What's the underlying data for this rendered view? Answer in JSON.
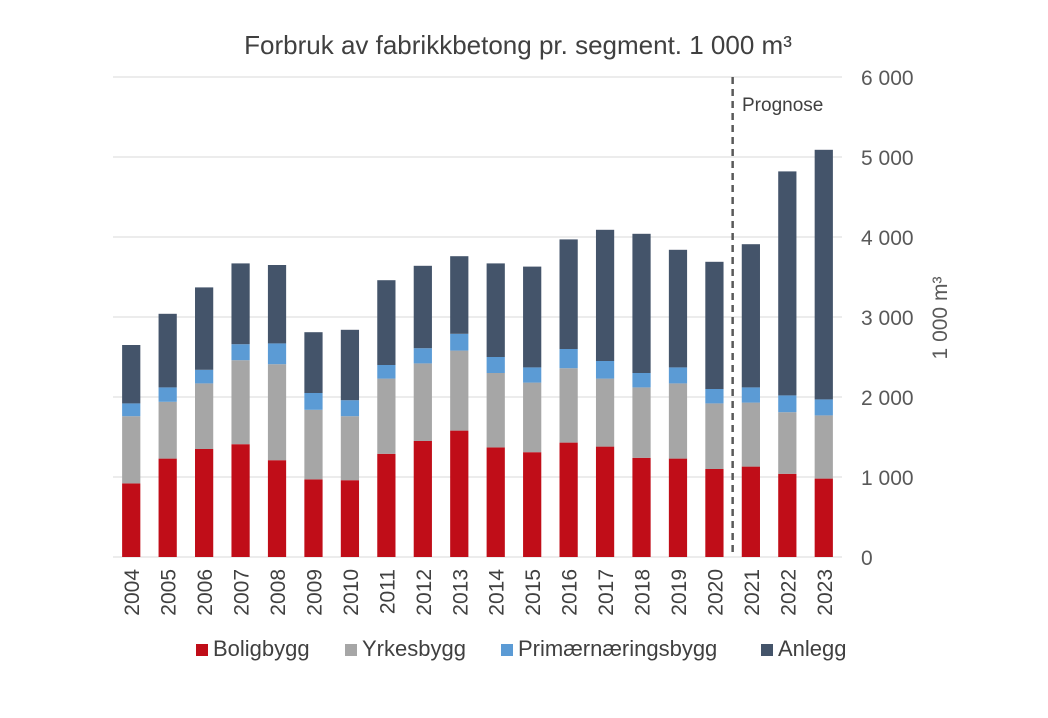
{
  "chart_data": {
    "type": "bar",
    "stacked": true,
    "title": "Forbruk av fabrikkbetong pr. segment. 1 000 m³",
    "xlabel": "",
    "ylabel": "1 000 m³",
    "ylim": [
      0,
      6000
    ],
    "yticks": [
      0,
      1000,
      2000,
      3000,
      4000,
      5000,
      6000
    ],
    "ytick_labels": [
      "0",
      "1 000",
      "2 000",
      "3 000",
      "4 000",
      "5 000",
      "6 000"
    ],
    "yaxis_side": "right",
    "grid": true,
    "categories": [
      "2004",
      "2005",
      "2006",
      "2007",
      "2008",
      "2009",
      "2010",
      "2011",
      "2012",
      "2013",
      "2014",
      "2015",
      "2016",
      "2017",
      "2018",
      "2019",
      "2020",
      "2021",
      "2022",
      "2023"
    ],
    "series": [
      {
        "name": "Boligbygg",
        "color": "#c00d18",
        "values": [
          920,
          1230,
          1350,
          1410,
          1210,
          970,
          960,
          1290,
          1450,
          1580,
          1370,
          1310,
          1430,
          1380,
          1240,
          1230,
          1100,
          1130,
          1040,
          980
        ]
      },
      {
        "name": "Yrkesbygg",
        "color": "#a6a6a6",
        "values": [
          840,
          710,
          820,
          1050,
          1200,
          870,
          800,
          940,
          970,
          1000,
          930,
          870,
          930,
          850,
          880,
          940,
          820,
          800,
          770,
          790
        ]
      },
      {
        "name": "Primærnæringsbygg",
        "color": "#5b9bd5",
        "values": [
          160,
          180,
          170,
          200,
          260,
          210,
          200,
          170,
          190,
          210,
          200,
          190,
          240,
          220,
          180,
          200,
          180,
          190,
          210,
          200
        ]
      },
      {
        "name": "Anlegg",
        "color": "#44546a",
        "values": [
          730,
          920,
          1030,
          1010,
          980,
          760,
          880,
          1060,
          1030,
          970,
          1170,
          1260,
          1370,
          1640,
          1740,
          1470,
          1590,
          1790,
          2800,
          3120
        ]
      }
    ],
    "legend_position": "bottom",
    "annotations": [
      {
        "type": "vline_dashed",
        "between": [
          "2020",
          "2021"
        ]
      },
      {
        "type": "text",
        "text": "Prognose",
        "anchor": "top-right"
      }
    ]
  }
}
